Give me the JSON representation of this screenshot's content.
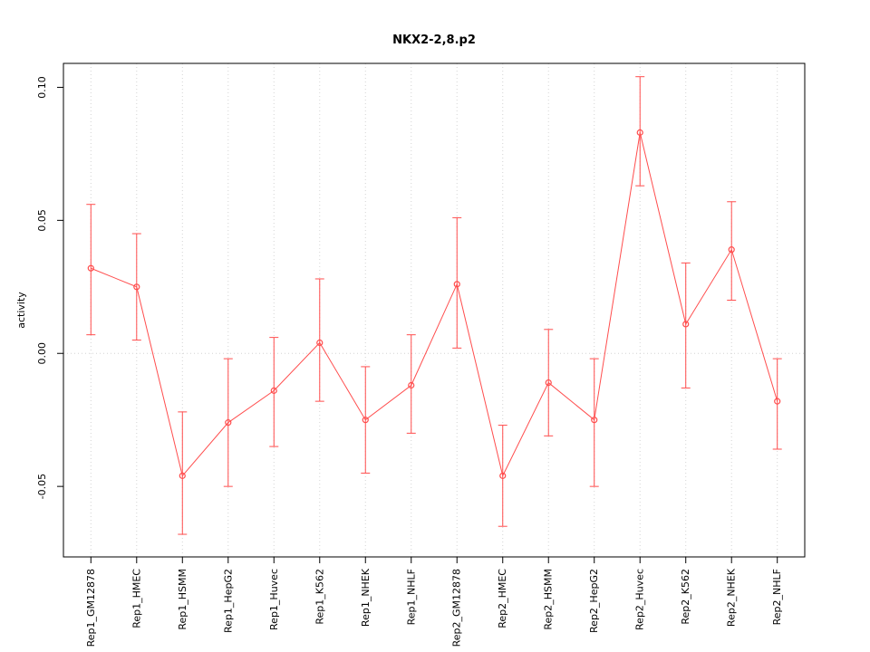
{
  "chart_data": {
    "type": "scatter",
    "title": "NKX2-2,8.p2",
    "xlabel": "",
    "ylabel": "activity",
    "ylim": [
      -0.0765,
      0.109
    ],
    "yticks": [
      -0.05,
      0,
      0.05,
      0.1
    ],
    "ytick_labels": [
      "-0.05",
      "0.00",
      "0.05",
      "0.10"
    ],
    "legend": "none",
    "grid": {
      "vertical": "dotted line at each category",
      "horizontal": "dotted line at y = 0"
    },
    "point_color": "#ff4d4d",
    "grid_color": "#d4d4d4",
    "axis_color": "#000000",
    "categories": [
      "Rep1_GM12878",
      "Rep1_HMEC",
      "Rep1_HSMM",
      "Rep1_HepG2",
      "Rep1_Huvec",
      "Rep1_K562",
      "Rep1_NHEK",
      "Rep1_NHLF",
      "Rep2_GM12878",
      "Rep2_HMEC",
      "Rep2_HSMM",
      "Rep2_HepG2",
      "Rep2_Huvec",
      "Rep2_K562",
      "Rep2_NHEK",
      "Rep2_NHLF"
    ],
    "series": [
      {
        "name": "activity",
        "values": [
          0.032,
          0.025,
          -0.046,
          -0.026,
          -0.014,
          0.004,
          -0.025,
          -0.012,
          0.026,
          -0.046,
          -0.011,
          -0.025,
          0.083,
          0.011,
          0.039,
          -0.018
        ],
        "err_low": [
          0.007,
          0.005,
          -0.068,
          -0.05,
          -0.035,
          -0.018,
          -0.045,
          -0.03,
          0.002,
          -0.065,
          -0.031,
          -0.05,
          0.063,
          -0.013,
          0.02,
          -0.036
        ],
        "err_high": [
          0.056,
          0.045,
          -0.022,
          -0.002,
          0.006,
          0.028,
          -0.005,
          0.007,
          0.051,
          -0.027,
          0.009,
          -0.002,
          0.104,
          0.034,
          0.057,
          -0.002
        ]
      }
    ]
  }
}
